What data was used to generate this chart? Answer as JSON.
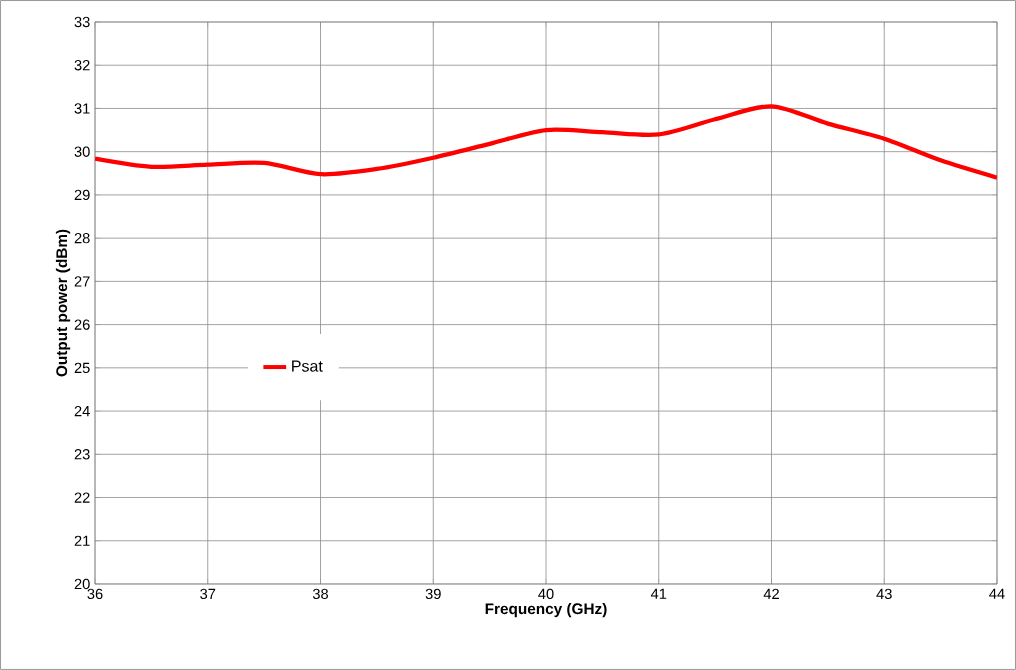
{
  "chart_data": {
    "type": "line",
    "xlabel": "Frequency (GHz)",
    "ylabel": "Output power (dBm)",
    "x": [
      36,
      36.5,
      37,
      37.5,
      38,
      38.5,
      39,
      39.5,
      40,
      40.5,
      41,
      41.5,
      42,
      42.5,
      43,
      43.5,
      44
    ],
    "series": [
      {
        "name": "Psat",
        "color": "#ff0000",
        "values": [
          29.84,
          29.65,
          29.7,
          29.74,
          29.48,
          29.6,
          29.86,
          30.18,
          30.5,
          30.45,
          30.4,
          30.75,
          31.05,
          30.65,
          30.3,
          29.8,
          29.4
        ]
      }
    ],
    "xlim": [
      36,
      44
    ],
    "ylim": [
      20,
      33
    ],
    "xticks": [
      36,
      37,
      38,
      39,
      40,
      41,
      42,
      43,
      44
    ],
    "yticks": [
      20,
      21,
      22,
      23,
      24,
      25,
      26,
      27,
      28,
      29,
      30,
      31,
      32,
      33
    ],
    "grid": true,
    "legend": "left",
    "marker": "none",
    "line_style": "solid"
  }
}
